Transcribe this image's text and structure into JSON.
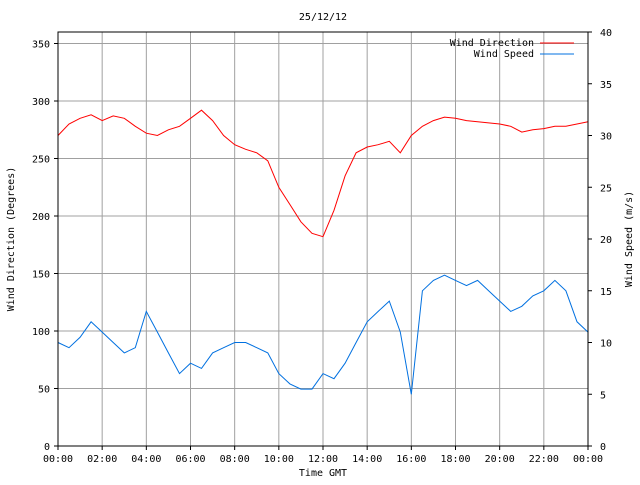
{
  "chart_data": {
    "type": "line",
    "title": "25/12/12",
    "xlabel": "Time GMT",
    "ylabel_left": "Wind Direction (Degrees)",
    "ylabel_right": "Wind Speed (m/s)",
    "x_ticks": [
      "00:00",
      "02:00",
      "04:00",
      "06:00",
      "08:00",
      "10:00",
      "12:00",
      "14:00",
      "16:00",
      "18:00",
      "20:00",
      "22:00",
      "00:00"
    ],
    "x_range_hours": [
      0,
      24
    ],
    "y_left_range": [
      0,
      360
    ],
    "y_left_ticks": [
      0,
      50,
      100,
      150,
      200,
      250,
      300,
      350
    ],
    "y_right_range": [
      0,
      40
    ],
    "y_right_ticks": [
      0,
      5,
      10,
      15,
      20,
      25,
      30,
      35,
      40
    ],
    "grid": true,
    "legend_position": "top-right",
    "series": [
      {
        "name": "Wind Direction",
        "color": "#ff0000",
        "axis": "left",
        "x_hours": [
          0,
          0.5,
          1,
          1.5,
          2,
          2.5,
          3,
          3.5,
          4,
          4.5,
          5,
          5.5,
          6,
          6.5,
          7,
          7.5,
          8,
          8.5,
          9,
          9.5,
          10,
          10.5,
          11,
          11.5,
          12,
          12.5,
          13,
          13.5,
          14,
          14.5,
          15,
          15.5,
          16,
          16.5,
          17,
          17.5,
          18,
          18.5,
          19,
          19.5,
          20,
          20.5,
          21,
          21.5,
          22,
          22.5,
          23,
          23.5,
          24
        ],
        "values": [
          270,
          280,
          285,
          288,
          283,
          287,
          285,
          278,
          272,
          270,
          275,
          278,
          285,
          292,
          283,
          270,
          262,
          258,
          255,
          248,
          225,
          210,
          195,
          185,
          182,
          205,
          235,
          255,
          260,
          262,
          265,
          255,
          270,
          278,
          283,
          286,
          285,
          283,
          282,
          281,
          280,
          278,
          273,
          275,
          276,
          278,
          278,
          280,
          282
        ]
      },
      {
        "name": "Wind Speed",
        "color": "#0070e0",
        "axis": "right",
        "x_hours": [
          0,
          0.5,
          1,
          1.5,
          2,
          2.5,
          3,
          3.5,
          4,
          4.5,
          5,
          5.5,
          6,
          6.5,
          7,
          7.5,
          8,
          8.5,
          9,
          9.5,
          10,
          10.5,
          11,
          11.5,
          12,
          12.5,
          13,
          13.5,
          14,
          14.5,
          15,
          15.5,
          16,
          16.5,
          17,
          17.5,
          18,
          18.5,
          19,
          19.5,
          20,
          20.5,
          21,
          21.5,
          22,
          22.5,
          23,
          23.5,
          24
        ],
        "values": [
          10,
          9.5,
          10.5,
          12,
          11,
          10,
          9,
          9.5,
          13,
          11,
          9,
          7,
          8,
          7.5,
          9,
          9.5,
          10,
          10,
          9.5,
          9,
          7,
          6,
          5.5,
          5.5,
          7,
          6.5,
          8,
          10,
          12,
          13,
          14,
          11,
          5,
          15,
          16,
          16.5,
          16,
          15.5,
          16,
          15,
          14,
          13,
          13.5,
          14.5,
          15,
          16,
          15,
          12,
          11
        ]
      }
    ]
  }
}
